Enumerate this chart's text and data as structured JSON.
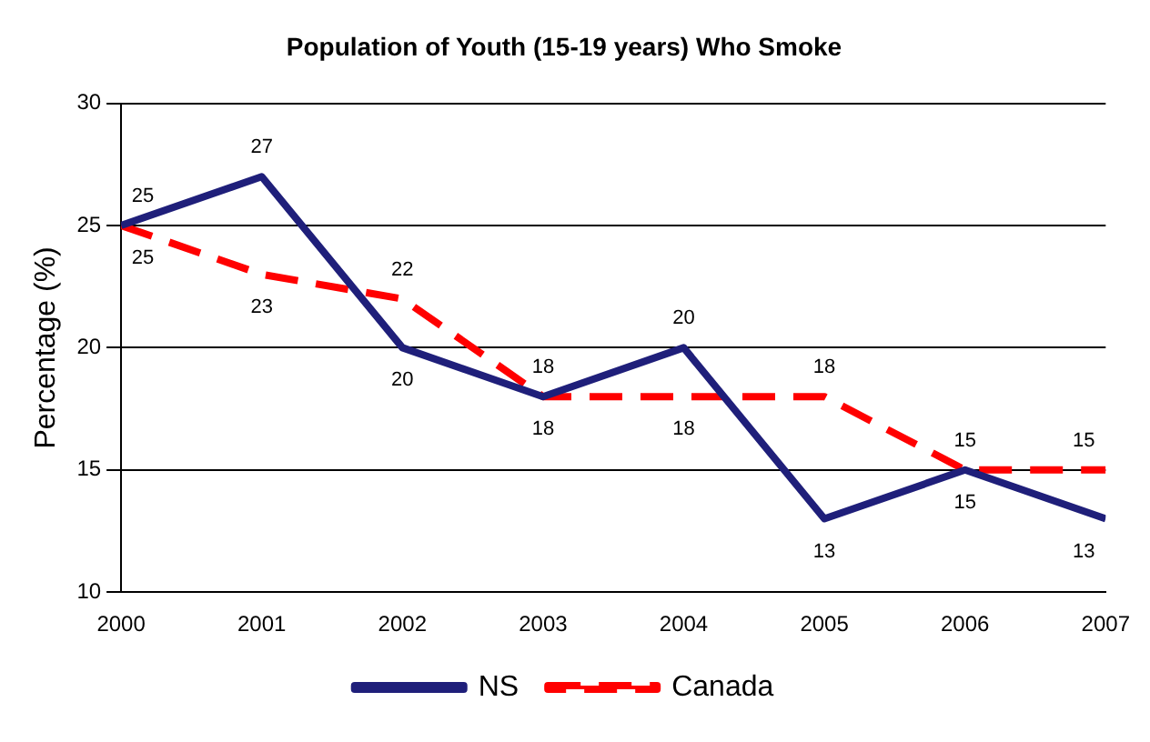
{
  "chart_data": {
    "type": "line",
    "title": "Population of Youth (15-19 years) Who Smoke",
    "ylabel": "Percentage (%)",
    "x": [
      2000,
      2001,
      2002,
      2003,
      2004,
      2005,
      2006,
      2007
    ],
    "series": [
      {
        "name": "NS",
        "color": "#1f1f7a",
        "values": [
          25,
          27,
          20,
          18,
          20,
          13,
          15,
          13
        ],
        "line_style": "solid"
      },
      {
        "name": "Canada",
        "color": "#ff0000",
        "values": [
          25,
          23,
          22,
          18,
          18,
          18,
          15,
          15
        ],
        "line_style": "dashed"
      }
    ],
    "xlim": [
      2000,
      2007
    ],
    "xticks": [
      2000,
      2001,
      2002,
      2003,
      2004,
      2005,
      2006,
      2007
    ],
    "ylim": [
      10,
      30
    ],
    "yticks": [
      10,
      15,
      20,
      25,
      30
    ],
    "grid": "y",
    "legend": "bottom",
    "marker": "none",
    "data_labels": true
  }
}
